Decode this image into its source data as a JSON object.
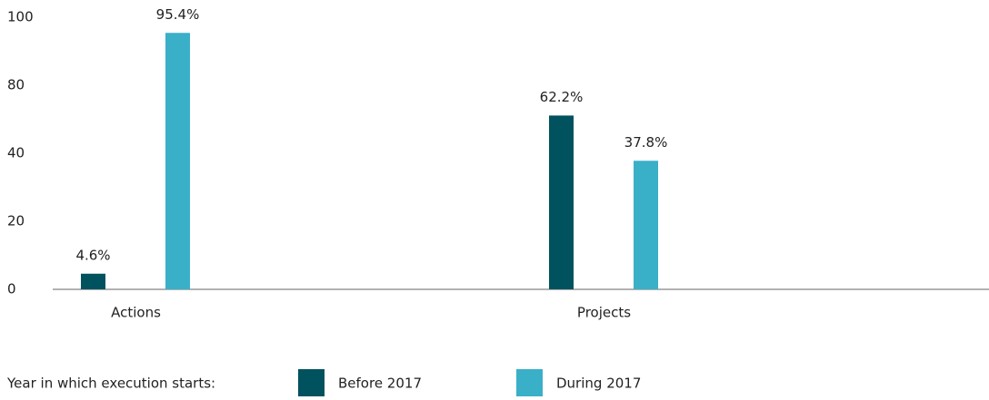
{
  "chart_data": {
    "type": "bar",
    "categories": [
      "Actions",
      "Projects"
    ],
    "series": [
      {
        "name": "Before 2017",
        "color": "#00525e",
        "values": [
          4.6,
          62.2
        ],
        "value_labels": [
          "4.6%",
          "62.2%"
        ]
      },
      {
        "name": "During 2017",
        "color": "#3aafc8",
        "values": [
          95.4,
          37.8
        ],
        "value_labels": [
          "95.4%",
          "37.8%"
        ]
      }
    ],
    "ylim": [
      0,
      100
    ],
    "yticks": [
      0,
      20,
      40,
      80,
      100
    ],
    "legend_title": "Year in which execution starts:",
    "legend": "bottom"
  }
}
